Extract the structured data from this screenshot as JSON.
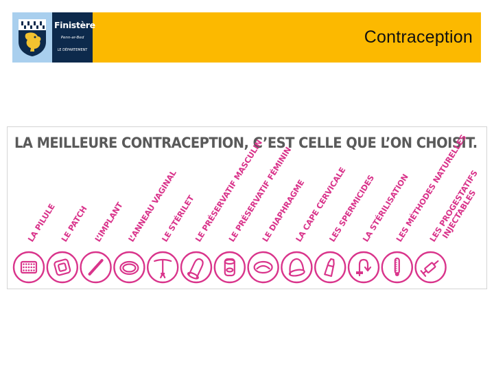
{
  "header": {
    "logo": {
      "name": "Finistère",
      "subtitle": "Penn-ar-Bed",
      "department": "LE DÉPARTEMENT",
      "shield_icon": "finistere-coat-of-arms"
    },
    "title": "Contraception",
    "background_color": "#fcb900"
  },
  "banner": {
    "headline": "LA MEILLEURE CONTRACEPTION, C’EST CELLE QUE L’ON CHOISIT.",
    "accent_color": "#d9348b",
    "methods": [
      {
        "label": "LA PILULE",
        "icon": "pill-pack-icon"
      },
      {
        "label": "LE PATCH",
        "icon": "patch-icon"
      },
      {
        "label": "L’IMPLANT",
        "icon": "implant-icon"
      },
      {
        "label": "L’ANNEAU VAGINAL",
        "icon": "ring-icon"
      },
      {
        "label": "LE STÉRILET",
        "icon": "iud-icon"
      },
      {
        "label": "LE PRÉSERVATIF MASCULIN",
        "icon": "male-condom-icon"
      },
      {
        "label": "LE PRÉSERVATIF FÉMININ",
        "icon": "female-condom-icon"
      },
      {
        "label": "LE DIAPHRAGME",
        "icon": "diaphragm-icon"
      },
      {
        "label": "LA CAPE CERVICALE",
        "icon": "cervical-cap-icon"
      },
      {
        "label": "LES SPERMICIDES",
        "icon": "spermicide-tube-icon"
      },
      {
        "label": "LA STÉRILISATION",
        "icon": "sterilization-icon"
      },
      {
        "label": "LES MÉTHODES NATURELLES",
        "icon": "thermometer-icon"
      },
      {
        "label": [
          "LES PROGESTATIFS",
          "INJECTABLES"
        ],
        "icon": "syringe-icon"
      }
    ]
  }
}
